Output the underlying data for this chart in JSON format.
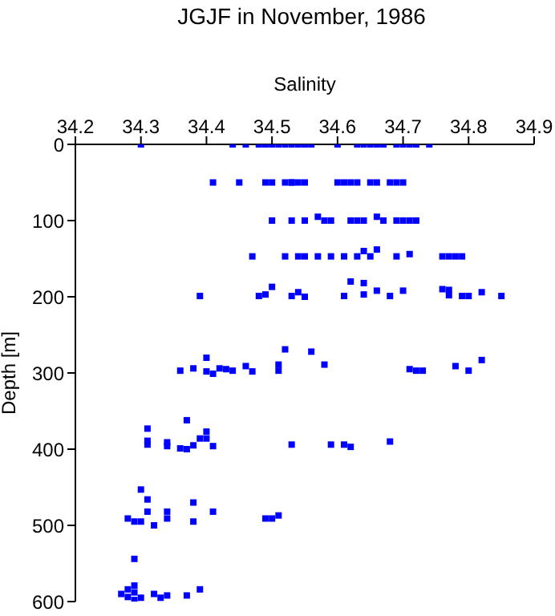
{
  "chart_data": {
    "type": "scatter",
    "title": "JGJF in November, 1986",
    "xlabel": "Salinity",
    "ylabel": "Depth [m]",
    "xlim": [
      34.2,
      34.9
    ],
    "xticks": [
      34.2,
      34.3,
      34.4,
      34.5,
      34.6,
      34.7,
      34.8,
      34.9
    ],
    "ylim": [
      600,
      0
    ],
    "yticks": [
      0,
      100,
      200,
      300,
      400,
      500,
      600
    ],
    "grid": false,
    "legend": false,
    "marker": "square",
    "series": [
      {
        "color": "#0000ff",
        "x": [
          34.3,
          34.44,
          34.46,
          34.48,
          34.49,
          34.5,
          34.51,
          34.52,
          34.53,
          34.54,
          34.55,
          34.56,
          34.6,
          34.63,
          34.64,
          34.65,
          34.66,
          34.67,
          34.69,
          34.7,
          34.71,
          34.72,
          34.74,
          34.41,
          34.45,
          34.49,
          34.5,
          34.52,
          34.53,
          34.53,
          34.54,
          34.55,
          34.6,
          34.61,
          34.62,
          34.63,
          34.65,
          34.66,
          34.68,
          34.69,
          34.7,
          34.5,
          34.53,
          34.55,
          34.57,
          34.58,
          34.59,
          34.62,
          34.63,
          34.64,
          34.66,
          34.67,
          34.69,
          34.7,
          34.71,
          34.72,
          34.47,
          34.52,
          34.54,
          34.55,
          34.57,
          34.59,
          34.61,
          34.63,
          34.64,
          34.66,
          34.65,
          34.69,
          34.71,
          34.76,
          34.77,
          34.78,
          34.79,
          34.39,
          34.48,
          34.49,
          34.5,
          34.53,
          34.54,
          34.55,
          34.61,
          34.62,
          34.64,
          34.64,
          34.66,
          34.68,
          34.7,
          34.76,
          34.77,
          34.77,
          34.79,
          34.8,
          34.82,
          34.85,
          34.36,
          34.38,
          34.4,
          34.4,
          34.41,
          34.42,
          34.43,
          34.44,
          34.46,
          34.47,
          34.51,
          34.51,
          34.52,
          34.56,
          34.58,
          34.71,
          34.72,
          34.73,
          34.78,
          34.8,
          34.82,
          34.31,
          34.31,
          34.31,
          34.34,
          34.34,
          34.36,
          34.37,
          34.37,
          34.38,
          34.39,
          34.4,
          34.4,
          34.41,
          34.53,
          34.59,
          34.61,
          34.62,
          34.68,
          34.3,
          34.31,
          34.38,
          34.31,
          34.34,
          34.41,
          34.51,
          34.28,
          34.34,
          34.49,
          34.5,
          34.29,
          34.3,
          34.38,
          34.32,
          34.29,
          34.29,
          34.28,
          34.39,
          34.29,
          34.27,
          34.32,
          34.34,
          34.37,
          34.28,
          34.3,
          34.33,
          34.29
        ],
        "values": [
          0,
          0,
          0,
          0,
          0,
          0,
          0,
          0,
          0,
          0,
          0,
          0,
          0,
          0,
          0,
          0,
          0,
          0,
          0,
          0,
          0,
          0,
          0,
          50,
          50,
          50,
          50,
          50,
          50,
          50,
          50,
          50,
          50,
          50,
          50,
          50,
          50,
          50,
          50,
          50,
          50,
          100,
          100,
          100,
          95,
          100,
          100,
          100,
          100,
          100,
          95,
          100,
          100,
          100,
          100,
          100,
          147,
          147,
          147,
          147,
          147,
          147,
          147,
          147,
          140,
          138,
          147,
          147,
          144,
          147,
          147,
          147,
          147,
          199,
          199,
          197,
          187,
          199,
          194,
          200,
          199,
          180,
          182,
          197,
          192,
          199,
          192,
          190,
          191,
          198,
          199,
          199,
          194,
          199,
          297,
          294,
          280,
          298,
          301,
          294,
          295,
          297,
          291,
          298,
          297,
          289,
          269,
          272,
          289,
          295,
          297,
          297,
          291,
          297,
          283,
          373,
          389,
          394,
          391,
          396,
          399,
          362,
          400,
          395,
          386,
          377,
          386,
          396,
          394,
          394,
          394,
          397,
          390,
          453,
          466,
          470,
          482,
          482,
          482,
          487,
          491,
          491,
          491,
          491,
          495,
          495,
          495,
          500,
          544,
          579,
          584,
          584,
          588,
          590,
          590,
          592,
          592,
          594,
          595,
          595,
          598
        ]
      }
    ]
  }
}
